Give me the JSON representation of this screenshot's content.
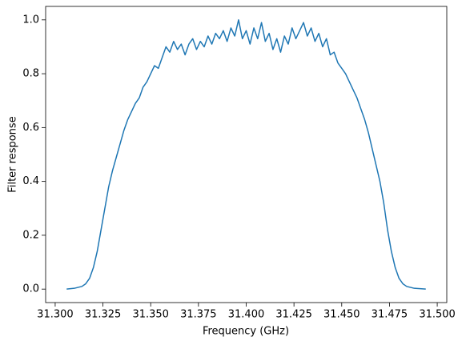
{
  "chart_data": {
    "type": "line",
    "x_label": "Frequency (GHz)",
    "y_label": "Filter response",
    "x": [
      31.306,
      31.31,
      31.314,
      31.316,
      31.318,
      31.32,
      31.322,
      31.324,
      31.326,
      31.328,
      31.33,
      31.332,
      31.334,
      31.336,
      31.338,
      31.34,
      31.342,
      31.344,
      31.346,
      31.348,
      31.35,
      31.352,
      31.354,
      31.356,
      31.358,
      31.36,
      31.362,
      31.364,
      31.366,
      31.368,
      31.37,
      31.372,
      31.374,
      31.376,
      31.378,
      31.38,
      31.382,
      31.384,
      31.386,
      31.388,
      31.39,
      31.392,
      31.394,
      31.396,
      31.398,
      31.4,
      31.402,
      31.404,
      31.406,
      31.408,
      31.41,
      31.412,
      31.414,
      31.416,
      31.418,
      31.42,
      31.422,
      31.424,
      31.426,
      31.428,
      31.43,
      31.432,
      31.434,
      31.436,
      31.438,
      31.44,
      31.442,
      31.444,
      31.446,
      31.448,
      31.45,
      31.452,
      31.454,
      31.456,
      31.458,
      31.46,
      31.462,
      31.464,
      31.466,
      31.468,
      31.47,
      31.472,
      31.474,
      31.476,
      31.478,
      31.48,
      31.482,
      31.484,
      31.488,
      31.494
    ],
    "series": [
      {
        "color": "#1f77b4",
        "values": [
          0.0,
          0.003,
          0.01,
          0.02,
          0.04,
          0.08,
          0.14,
          0.22,
          0.3,
          0.38,
          0.44,
          0.49,
          0.54,
          0.59,
          0.63,
          0.66,
          0.69,
          0.71,
          0.75,
          0.77,
          0.8,
          0.83,
          0.82,
          0.86,
          0.9,
          0.88,
          0.92,
          0.89,
          0.91,
          0.87,
          0.91,
          0.93,
          0.89,
          0.92,
          0.9,
          0.94,
          0.91,
          0.95,
          0.93,
          0.96,
          0.92,
          0.97,
          0.94,
          1.0,
          0.93,
          0.96,
          0.91,
          0.97,
          0.93,
          0.99,
          0.92,
          0.95,
          0.89,
          0.93,
          0.88,
          0.94,
          0.91,
          0.97,
          0.93,
          0.96,
          0.99,
          0.94,
          0.97,
          0.92,
          0.95,
          0.9,
          0.93,
          0.87,
          0.88,
          0.84,
          0.82,
          0.8,
          0.77,
          0.74,
          0.71,
          0.67,
          0.63,
          0.58,
          0.52,
          0.46,
          0.4,
          0.32,
          0.22,
          0.14,
          0.08,
          0.04,
          0.02,
          0.01,
          0.003,
          0.0
        ]
      }
    ],
    "xlim": [
      31.295,
      31.505
    ],
    "ylim": [
      -0.05,
      1.05
    ],
    "xticks": [
      {
        "value": 31.3,
        "label": "31.300"
      },
      {
        "value": 31.325,
        "label": "31.325"
      },
      {
        "value": 31.35,
        "label": "31.350"
      },
      {
        "value": 31.375,
        "label": "31.375"
      },
      {
        "value": 31.4,
        "label": "31.400"
      },
      {
        "value": 31.425,
        "label": "31.425"
      },
      {
        "value": 31.45,
        "label": "31.450"
      },
      {
        "value": 31.475,
        "label": "31.475"
      },
      {
        "value": 31.5,
        "label": "31.500"
      }
    ],
    "yticks": [
      {
        "value": 0,
        "label": "0.0"
      },
      {
        "value": 0.2,
        "label": "0.2"
      },
      {
        "value": 0.4,
        "label": "0.4"
      },
      {
        "value": 0.6,
        "label": "0.6"
      },
      {
        "value": 0.8,
        "label": "0.8"
      },
      {
        "value": 1,
        "label": "1.0"
      }
    ]
  }
}
